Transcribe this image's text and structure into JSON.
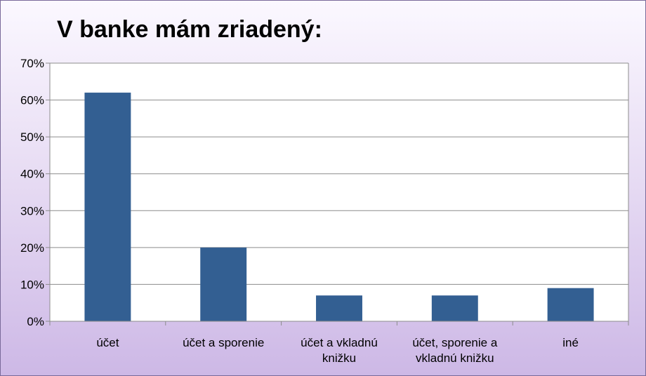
{
  "chart_data": {
    "type": "bar",
    "title": "V banke mám zriadený:",
    "categories": [
      [
        "účet"
      ],
      [
        "účet a sporenie"
      ],
      [
        "účet a vkladnú",
        "knižku"
      ],
      [
        "účet, sporenie a",
        "vkladnú  knižku"
      ],
      [
        "iné"
      ]
    ],
    "values": [
      62,
      20,
      7,
      7,
      9
    ],
    "ylim": [
      0,
      70
    ],
    "yticks": [
      0,
      10,
      20,
      30,
      40,
      50,
      60,
      70
    ],
    "ytick_format": "{v}%",
    "grid": true,
    "legend": "none",
    "colors": {
      "bar": "#335f92",
      "grid": "#8c8c8c",
      "plot_bg": "#ffffff"
    }
  }
}
